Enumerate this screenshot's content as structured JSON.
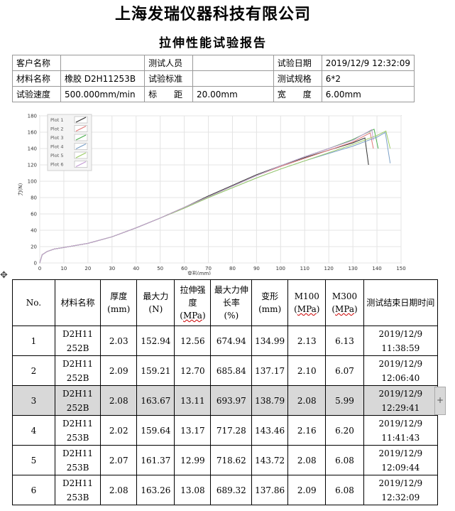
{
  "header": {
    "company": "上海发瑞仪器科技有限公司",
    "report_title": "拉伸性能试验报告"
  },
  "info": {
    "row1": {
      "l1": "客户名称",
      "v1": "",
      "l2": "测试人员",
      "v2": "",
      "l3": "试验日期",
      "v3": "2019/12/9 12:32:09"
    },
    "row2": {
      "l1": "材料名称",
      "v1": "橡胶 D2H11253B",
      "l2": "试验标准",
      "v2": "",
      "l3": "测试规格",
      "v3": "6*2"
    },
    "row3": {
      "l1": "试验速度",
      "v1": "500.000mm/min",
      "l2": "标　　距",
      "v2": "20.00mm",
      "l3": "宽　　度",
      "v3": "6.00mm"
    }
  },
  "chart_data": {
    "type": "line",
    "xlabel": "变形(mm)",
    "ylabel": "力(N)",
    "xlim": [
      0,
      150
    ],
    "ylim": [
      0,
      180
    ],
    "xticks": [
      0,
      10,
      20,
      30,
      40,
      50,
      60,
      70,
      80,
      90,
      100,
      110,
      120,
      130,
      140,
      150
    ],
    "yticks": [
      0,
      20,
      40,
      60,
      80,
      100,
      120,
      140,
      160,
      180
    ],
    "grid": true,
    "legend": "top-left",
    "series": [
      {
        "name": "Plot 1",
        "color": "#333333",
        "x": [
          0,
          1,
          3,
          6,
          10,
          20,
          30,
          40,
          50,
          60,
          70,
          80,
          90,
          100,
          110,
          120,
          130,
          134.99,
          136.5
        ],
        "y": [
          0,
          10,
          14,
          17,
          19,
          24,
          32,
          43,
          55,
          68,
          82,
          95,
          108,
          119,
          129,
          138,
          147,
          152.94,
          120
        ]
      },
      {
        "name": "Plot 2",
        "color": "#e07a7a",
        "x": [
          0,
          1,
          3,
          6,
          10,
          20,
          30,
          40,
          50,
          60,
          70,
          80,
          90,
          100,
          110,
          120,
          130,
          137.17,
          138.5
        ],
        "y": [
          0,
          10,
          14,
          17,
          19,
          24,
          32,
          43,
          55,
          68,
          81,
          94,
          107,
          118,
          128,
          138,
          148,
          159.21,
          140
        ]
      },
      {
        "name": "Plot 3",
        "color": "#4caf50",
        "x": [
          0,
          1,
          3,
          6,
          10,
          20,
          30,
          40,
          50,
          60,
          70,
          80,
          90,
          100,
          110,
          120,
          130,
          138.79,
          140.5
        ],
        "y": [
          0,
          10,
          14,
          17,
          19,
          24,
          32,
          43,
          55,
          68,
          81,
          94,
          107,
          119,
          130,
          140,
          151,
          163.67,
          140
        ]
      },
      {
        "name": "Plot 4",
        "color": "#7a9fc7",
        "x": [
          0,
          1,
          3,
          6,
          10,
          20,
          30,
          40,
          50,
          60,
          70,
          80,
          90,
          100,
          110,
          120,
          130,
          140,
          143.46,
          145.5
        ],
        "y": [
          0,
          10,
          14,
          17,
          19,
          24,
          32,
          43,
          55,
          67,
          80,
          92,
          104,
          115,
          125,
          134,
          143,
          154,
          159.64,
          122
        ]
      },
      {
        "name": "Plot 5",
        "color": "#9ccc65",
        "x": [
          0,
          1,
          3,
          6,
          10,
          20,
          30,
          40,
          50,
          60,
          70,
          80,
          90,
          100,
          110,
          120,
          130,
          140,
          143.72,
          145.5
        ],
        "y": [
          0,
          10,
          14,
          17,
          19,
          24,
          32,
          43,
          55,
          67,
          80,
          92,
          104,
          115,
          125,
          135,
          145,
          156,
          161.37,
          140
        ]
      },
      {
        "name": "Plot 6",
        "color": "#c39bd3",
        "x": [
          0,
          1,
          3,
          6,
          10,
          20,
          30,
          40,
          50,
          60,
          70,
          80,
          90,
          100,
          110,
          120,
          130,
          137.86,
          138.5
        ],
        "y": [
          0,
          10,
          14,
          17,
          19,
          24,
          32,
          43,
          55,
          68,
          81,
          94,
          107,
          119,
          130,
          140,
          150,
          163.26,
          150
        ]
      }
    ]
  },
  "table": {
    "headers": {
      "no": "No.",
      "material": "材料名称",
      "thickness": "厚度",
      "thickness_unit": "(mm)",
      "maxforce": "最大力",
      "maxforce_unit": "(N)",
      "tensile": "拉伸强度",
      "tensile_unit_pre": "(",
      "tensile_unit": "MPa",
      "tensile_unit_post": ")",
      "elong": "最大力伸长率",
      "elong_unit": "(%)",
      "deform": "变形",
      "deform_unit": "(mm)",
      "m100": "M100",
      "m100_unit_pre": "(",
      "m100_unit": "MPa",
      "m100_unit_post": ")",
      "m300": "M300",
      "m300_unit_pre": "(",
      "m300_unit": "MPa",
      "m300_unit_post": ")",
      "enddate": "测试结束日期时间"
    },
    "rows": [
      {
        "no": "1",
        "mat1": "D2H11",
        "mat2": "252B",
        "thickness": "2.03",
        "maxforce": "152.94",
        "tensile": "12.56",
        "elong": "674.94",
        "deform": "134.99",
        "m100": "2.13",
        "m300": "6.13",
        "date": "2019/12/9",
        "time": "11:38:59"
      },
      {
        "no": "2",
        "mat1": "D2H11",
        "mat2": "252B",
        "thickness": "2.09",
        "maxforce": "159.21",
        "tensile": "12.70",
        "elong": "685.84",
        "deform": "137.17",
        "m100": "2.10",
        "m300": "6.07",
        "date": "2019/12/9",
        "time": "12:06:40"
      },
      {
        "no": "3",
        "mat1": "D2H11",
        "mat2": "252B",
        "thickness": "2.08",
        "maxforce": "163.67",
        "tensile": "13.11",
        "elong": "693.97",
        "deform": "138.79",
        "m100": "2.08",
        "m300": "5.99",
        "date": "2019/12/9",
        "time": "12:29:41"
      },
      {
        "no": "4",
        "mat1": "D2H11",
        "mat2": "253B",
        "thickness": "2.02",
        "maxforce": "159.64",
        "tensile": "13.17",
        "elong": "717.28",
        "deform": "143.46",
        "m100": "2.16",
        "m300": "6.20",
        "date": "2019/12/9",
        "time": "11:41:43"
      },
      {
        "no": "5",
        "mat1": "D2H11",
        "mat2": "253B",
        "thickness": "2.07",
        "maxforce": "161.37",
        "tensile": "12.99",
        "elong": "718.62",
        "deform": "143.72",
        "m100": "2.08",
        "m300": "6.08",
        "date": "2019/12/9",
        "time": "12:09:44"
      },
      {
        "no": "6",
        "mat1": "D2H11",
        "mat2": "253B",
        "thickness": "2.08",
        "maxforce": "163.26",
        "tensile": "13.08",
        "elong": "689.32",
        "deform": "137.86",
        "m100": "2.09",
        "m300": "6.08",
        "date": "2019/12/9",
        "time": "12:32:09"
      }
    ],
    "selected_index": 2
  },
  "icons": {
    "move_handle": "move-arrows-icon",
    "add_handle": "plus-icon"
  }
}
